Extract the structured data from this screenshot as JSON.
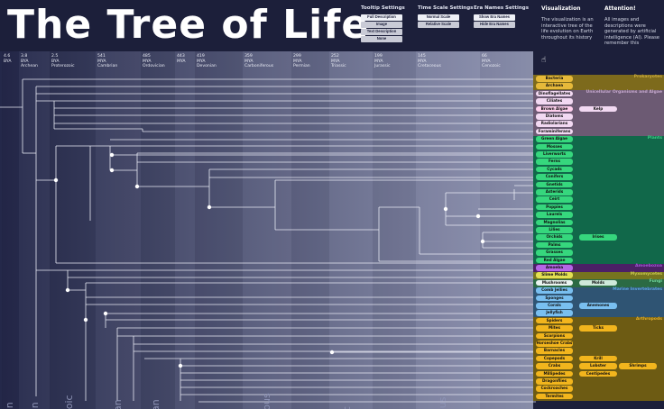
{
  "title": "The Tree of Life",
  "tooltip": {
    "heading": "Tooltip Settings",
    "buttons": [
      "Full Description",
      "Image",
      "Text Description",
      "None"
    ]
  },
  "timescale": {
    "heading": "Time Scale Settings",
    "buttons": [
      "Normal Scale",
      "Relative Scale"
    ]
  },
  "eranames": {
    "heading": "Era Names Settings",
    "buttons": [
      "Show Era Names",
      "Hide Era Names"
    ]
  },
  "visualization": {
    "heading": "Visualization",
    "text": "The visualization is an interactive tree of the life evolution on Earth throughout its history"
  },
  "attention": {
    "heading": "Attention!",
    "text": "All images and descriptions were generated by artificial intelligence (AI). Please remember this"
  },
  "ticks": [
    {
      "value": "4.6",
      "unit": "BYA",
      "era": ""
    },
    {
      "value": "3.8",
      "unit": "BYA",
      "era": "Archean"
    },
    {
      "value": "2.5",
      "unit": "BYA",
      "era": "Proterozoic"
    },
    {
      "value": "541",
      "unit": "MYA",
      "era": "Cambrian"
    },
    {
      "value": "485",
      "unit": "MYA",
      "era": "Ordovician"
    },
    {
      "value": "443",
      "unit": "MYA",
      "era": ""
    },
    {
      "value": "419",
      "unit": "MYA",
      "era": "Devonian"
    },
    {
      "value": "359",
      "unit": "MYA",
      "era": "Carboniferous"
    },
    {
      "value": "299",
      "unit": "MYA",
      "era": "Permian"
    },
    {
      "value": "252",
      "unit": "MYA",
      "era": "Triassic"
    },
    {
      "value": "199",
      "unit": "MYA",
      "era": "Jurassic"
    },
    {
      "value": "145",
      "unit": "MYA",
      "era": "Cretaceous"
    },
    {
      "value": "66",
      "unit": "MYA",
      "era": "Cenozoic"
    }
  ],
  "vertical_labels": [
    "an",
    "an",
    "zoic",
    "ian",
    "ian",
    "rous",
    "ic",
    "ous"
  ],
  "groups": [
    {
      "name": "Prokaryotes",
      "color": "#7d6a1c",
      "labelcolor": "#c9a93d"
    },
    {
      "name": "Unicellular Organisms and Algae",
      "color": "#6c5a73",
      "labelcolor": "#c7a9cf"
    },
    {
      "name": "Plants",
      "color": "#11684a",
      "labelcolor": "#3ccf86"
    },
    {
      "name": "Amoebozoa",
      "color": "#4c2066",
      "labelcolor": "#a357d6"
    },
    {
      "name": "Myxomycetes",
      "color": "#76751f",
      "labelcolor": "#c8c64e"
    },
    {
      "name": "Fungi",
      "color": "#2b6a44",
      "labelcolor": "#6fd69a"
    },
    {
      "name": "Marine Invertebrates",
      "color": "#2f5473",
      "labelcolor": "#5fa9e0"
    },
    {
      "name": "Arthropods",
      "color": "#6d5b13",
      "labelcolor": "#e0ad2c"
    }
  ],
  "leaves": [
    "Bacteria",
    "Archaea",
    "Dinoflagellates",
    "Ciliates",
    "Brown Algae",
    "Diatoms",
    "Radiolarians",
    "Foraminiferans",
    "Green Algae",
    "Mosses",
    "Liverworts",
    "Ferns",
    "Cycads",
    "Conifers",
    "Gnetids",
    "Asterids",
    "Ceirt",
    "Poppies",
    "Laurels",
    "Magnolias",
    "Lilies",
    "Orchids",
    "Palms",
    "Grasses",
    "Red Algae",
    "Amoeba",
    "Slime Molds",
    "Mushrooms",
    "Comb Jellies",
    "Sponges",
    "Corals",
    "Jellyfish",
    "Spiders",
    "Mites",
    "Scorpions",
    "Horseshoe Crabs",
    "Barnacles",
    "Copepods",
    "Crabs",
    "Millipedes",
    "Dragonflies",
    "Cockroaches",
    "Termites"
  ],
  "extra_leaves": [
    {
      "row": 4,
      "label": "Kelp",
      "col": 0
    },
    {
      "row": 21,
      "label": "Irises",
      "col": 0
    },
    {
      "row": 27,
      "label": "Molds",
      "col": 0
    },
    {
      "row": 30,
      "label": "Anemones",
      "col": 0
    },
    {
      "row": 33,
      "label": "Ticks",
      "col": 0
    },
    {
      "row": 37,
      "label": "Krill",
      "col": 0
    },
    {
      "row": 38,
      "label": "Lobster",
      "col": 0
    },
    {
      "row": 38,
      "label": "Shrimps",
      "col": 1
    },
    {
      "row": 39,
      "label": "Centipedes",
      "col": 0
    }
  ]
}
